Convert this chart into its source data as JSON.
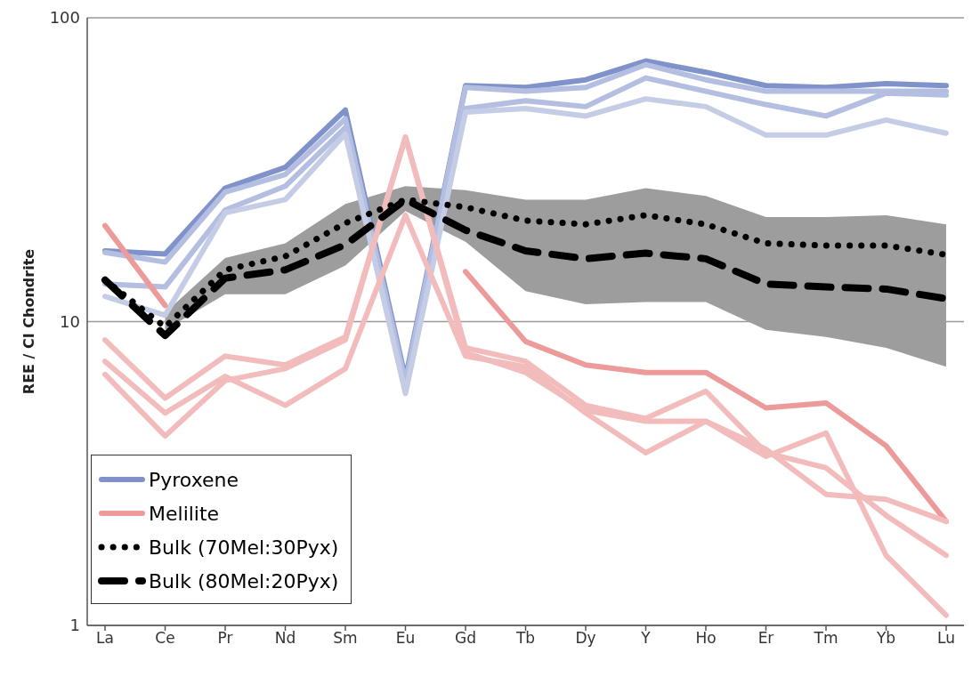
{
  "chart_data": {
    "type": "line",
    "ylabel": "REE / CI Chondrite",
    "categories": [
      "La",
      "Ce",
      "Pr",
      "Nd",
      "Sm",
      "Eu",
      "Gd",
      "Tb",
      "Dy",
      "Y",
      "Ho",
      "Er",
      "Tm",
      "Yb",
      "Lu"
    ],
    "log": "y",
    "ylim": [
      1,
      100
    ],
    "yticks": [
      1,
      10,
      100
    ],
    "grid": "y",
    "legend": "bottom left",
    "line_style": "solid",
    "series": [
      {
        "name": "Pyroxene",
        "color": "#7f92ca",
        "values": [
          17.1,
          16.7,
          27.5,
          32.2,
          49.7,
          6.5,
          59.8,
          59.0,
          62.5,
          72.1,
          66.2,
          59.8,
          59.0,
          60.7,
          59.8
        ]
      },
      {
        "color": "#b3bee0",
        "values": [
          16.9,
          15.7,
          26.7,
          30.5,
          46.5,
          6.3,
          59.0,
          57.3,
          59.0,
          70.1,
          62.5,
          57.3,
          57.3,
          57.3,
          57.3
        ]
      },
      {
        "color": "#b3bee0",
        "values": [
          13.3,
          13.0,
          23.3,
          27.9,
          43.5,
          6.1,
          50.3,
          53.3,
          51.0,
          63.4,
          57.3,
          51.8,
          47.5,
          56.5,
          55.7
        ]
      },
      {
        "color": "#c5cde6",
        "values": [
          12.1,
          10.5,
          22.8,
          25.2,
          41.5,
          5.8,
          48.9,
          50.3,
          47.5,
          54.1,
          51.0,
          41.1,
          41.1,
          46.1,
          41.7
        ]
      },
      {
        "name": "Melilite",
        "color": "#ec9a9a",
        "values": [
          20.7,
          11.3,
          null,
          null,
          null,
          null,
          14.6,
          8.6,
          7.2,
          6.8,
          6.8,
          5.2,
          5.4,
          3.9,
          2.2
        ]
      },
      {
        "color": "#f3bcbc",
        "values": [
          8.7,
          5.6,
          7.7,
          7.2,
          8.9,
          40.5,
          8.2,
          7.4,
          5.3,
          4.8,
          5.9,
          3.7,
          3.3,
          2.3,
          1.7
        ]
      },
      {
        "color": "#f3bcbc",
        "values": [
          7.4,
          5.0,
          6.6,
          5.3,
          7.0,
          22.4,
          7.7,
          7.1,
          5.0,
          3.7,
          4.7,
          3.6,
          4.3,
          1.7,
          1.08
        ]
      },
      {
        "color": "#f3bcbc",
        "values": [
          6.7,
          4.2,
          6.4,
          7.0,
          8.7,
          40.5,
          7.9,
          6.8,
          5.1,
          4.7,
          4.7,
          3.8,
          2.7,
          2.6,
          2.2
        ]
      },
      {
        "name": "Bulk (70Mel:30Pyx)",
        "color": "#000000",
        "line_style": "dotted",
        "values": [
          13.7,
          9.6,
          14.8,
          16.4,
          21.1,
          25.2,
          23.8,
          21.5,
          20.9,
          22.4,
          20.9,
          18.1,
          17.8,
          17.8,
          16.6
        ]
      },
      {
        "name": "Bulk (80Mel:20Pyx)",
        "color": "#000000",
        "line_style": "dashed",
        "values": [
          13.7,
          9.0,
          13.9,
          14.8,
          17.9,
          25.2,
          20.0,
          17.1,
          16.1,
          16.8,
          16.1,
          13.3,
          13.0,
          12.8,
          11.9
        ],
        "lower": [
          null,
          9.4,
          12.3,
          12.3,
          15.3,
          23.1,
          18.3,
          12.6,
          11.4,
          11.6,
          11.6,
          9.4,
          8.9,
          8.2,
          7.1
        ],
        "upper": [
          null,
          10.7,
          16.2,
          18.1,
          24.4,
          27.9,
          27.1,
          25.2,
          25.2,
          27.5,
          25.9,
          22.1,
          22.1,
          22.4,
          20.9
        ]
      }
    ]
  }
}
